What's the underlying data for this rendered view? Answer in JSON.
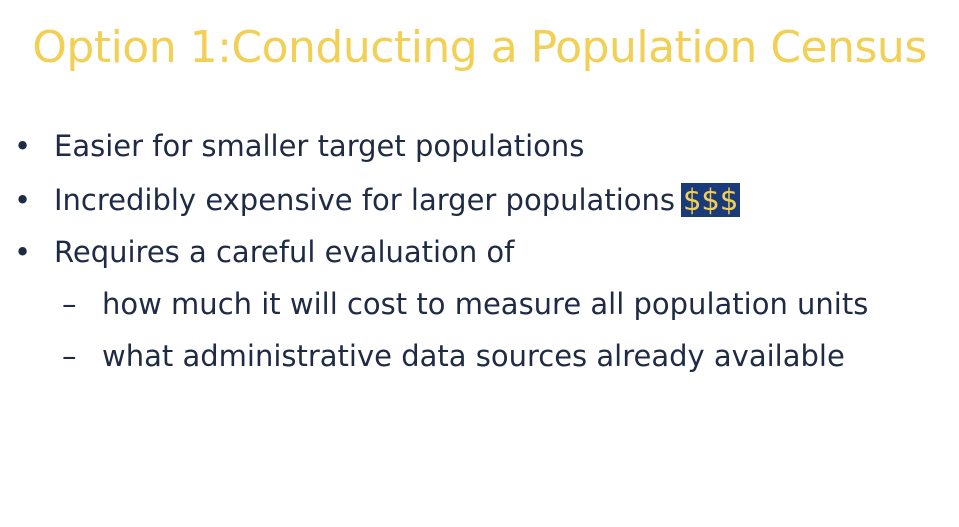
{
  "slide": {
    "title": "Option 1:Conducting a Population Census",
    "bullet_symbol": "•",
    "dash_symbol": "–",
    "bullets": [
      {
        "text": "Easier for smaller target populations"
      },
      {
        "text": "Incredibly expensive for larger populations",
        "highlight": "$$$"
      },
      {
        "text": "Requires a careful evaluation of"
      }
    ],
    "subbullets": [
      {
        "text": "how much it will cost to measure all population units"
      },
      {
        "text": "what administrative data sources already available"
      }
    ],
    "colors": {
      "title": "#f2cf55",
      "body_text": "#1f2a44",
      "highlight_bg": "#1a3a7a",
      "highlight_text": "#f2cf55",
      "background": "#ffffff"
    }
  }
}
